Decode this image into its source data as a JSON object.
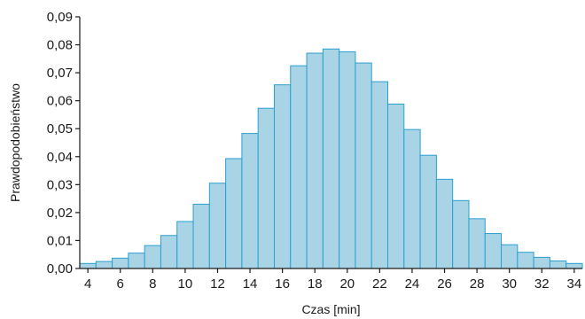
{
  "chart_data": {
    "type": "bar",
    "title": "",
    "xlabel": "Czas [min]",
    "ylabel": "Prawdopodobieństwo",
    "ylim": [
      0,
      0.09
    ],
    "xlim": [
      3.5,
      34.5
    ],
    "x_ticks": [
      "4",
      "6",
      "8",
      "10",
      "12",
      "14",
      "16",
      "18",
      "20",
      "22",
      "24",
      "26",
      "28",
      "30",
      "32",
      "34"
    ],
    "y_ticks": [
      "0,00",
      "0,01",
      "0,02",
      "0,03",
      "0,04",
      "0,05",
      "0,06",
      "0,07",
      "0,08",
      "0,09"
    ],
    "grid": false,
    "categories": [
      4,
      5,
      6,
      7,
      8,
      9,
      10,
      11,
      12,
      13,
      14,
      15,
      16,
      17,
      18,
      19,
      20,
      21,
      22,
      23,
      24,
      25,
      26,
      27,
      28,
      29,
      30,
      31,
      32,
      33,
      34
    ],
    "values": [
      0.0018,
      0.0025,
      0.0037,
      0.0055,
      0.0082,
      0.0118,
      0.0168,
      0.023,
      0.0305,
      0.0393,
      0.0483,
      0.0573,
      0.0657,
      0.0725,
      0.077,
      0.0785,
      0.0775,
      0.0735,
      0.0668,
      0.0588,
      0.0497,
      0.0405,
      0.0319,
      0.0243,
      0.0178,
      0.0125,
      0.0085,
      0.0058,
      0.004,
      0.0027,
      0.0018
    ],
    "colors": {
      "bar_fill": "#a8d4e6",
      "bar_stroke": "#2a9fd0",
      "axis": "#1a1a1a"
    }
  }
}
